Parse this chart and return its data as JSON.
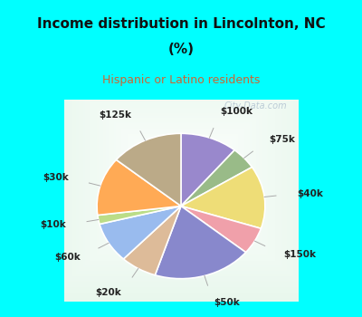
{
  "title_line1": "Income distribution in Lincolnton, NC",
  "title_line2": "(%)",
  "subtitle": "Hispanic or Latino residents",
  "title_color": "#111111",
  "subtitle_color": "#cc6633",
  "bg_cyan": "#00ffff",
  "watermark": "City-Data.com",
  "slices": [
    {
      "label": "$100k",
      "value": 11,
      "color": "#9988cc"
    },
    {
      "label": "$75k",
      "value": 5,
      "color": "#99bb88"
    },
    {
      "label": "$40k",
      "value": 14,
      "color": "#eedd77"
    },
    {
      "label": "$150k",
      "value": 6,
      "color": "#f0a0aa"
    },
    {
      "label": "$50k",
      "value": 19,
      "color": "#8888cc"
    },
    {
      "label": "$20k",
      "value": 7,
      "color": "#ddbb99"
    },
    {
      "label": "$60k",
      "value": 9,
      "color": "#99bbee"
    },
    {
      "label": "$10k",
      "value": 2,
      "color": "#bbdd88"
    },
    {
      "label": "$30k",
      "value": 13,
      "color": "#ffaa55"
    },
    {
      "label": "$125k",
      "value": 14,
      "color": "#bbaa88"
    }
  ],
  "figsize": [
    4.0,
    3.5
  ],
  "dpi": 100
}
